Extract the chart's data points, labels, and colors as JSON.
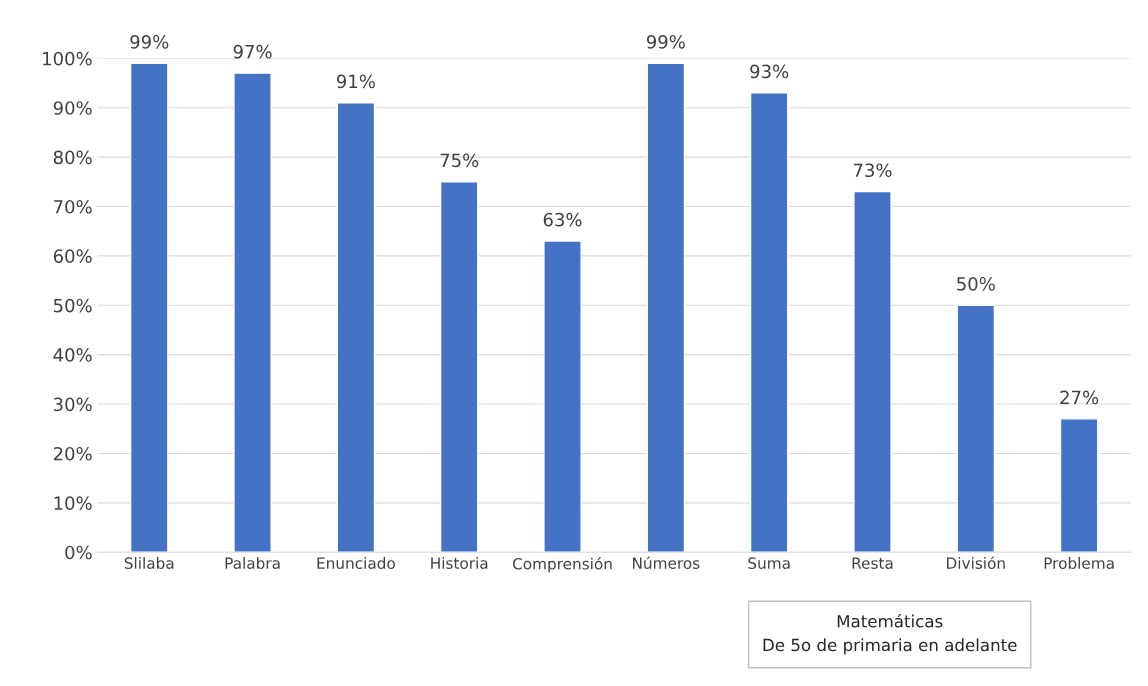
{
  "chart_data": {
    "type": "bar",
    "categories": [
      "Slilaba",
      "Palabra",
      "Enunciado",
      "Historia",
      "Comprensión",
      "Números",
      "Suma",
      "Resta",
      "División",
      "Problema"
    ],
    "values": [
      99,
      97,
      91,
      75,
      63,
      99,
      93,
      73,
      50,
      27
    ],
    "value_labels": [
      "99%",
      "97%",
      "91%",
      "75%",
      "63%",
      "99%",
      "93%",
      "73%",
      "50%",
      "27%"
    ],
    "color": "#4472c4",
    "ylim": [
      0,
      100
    ],
    "yticks": [
      {
        "value": 0,
        "label": "0%"
      },
      {
        "value": 10,
        "label": "10%"
      },
      {
        "value": 20,
        "label": "20%"
      },
      {
        "value": 30,
        "label": "30%"
      },
      {
        "value": 40,
        "label": "40%"
      },
      {
        "value": 50,
        "label": "50%"
      },
      {
        "value": 60,
        "label": "60%"
      },
      {
        "value": 70,
        "label": "70%"
      },
      {
        "value": 80,
        "label": "80%"
      },
      {
        "value": 90,
        "label": "90%"
      },
      {
        "value": 100,
        "label": "100%"
      }
    ],
    "grid": "y",
    "legend": false,
    "annotations": [
      "Matemáticas\nDe 5o de primaria en adelante"
    ]
  }
}
